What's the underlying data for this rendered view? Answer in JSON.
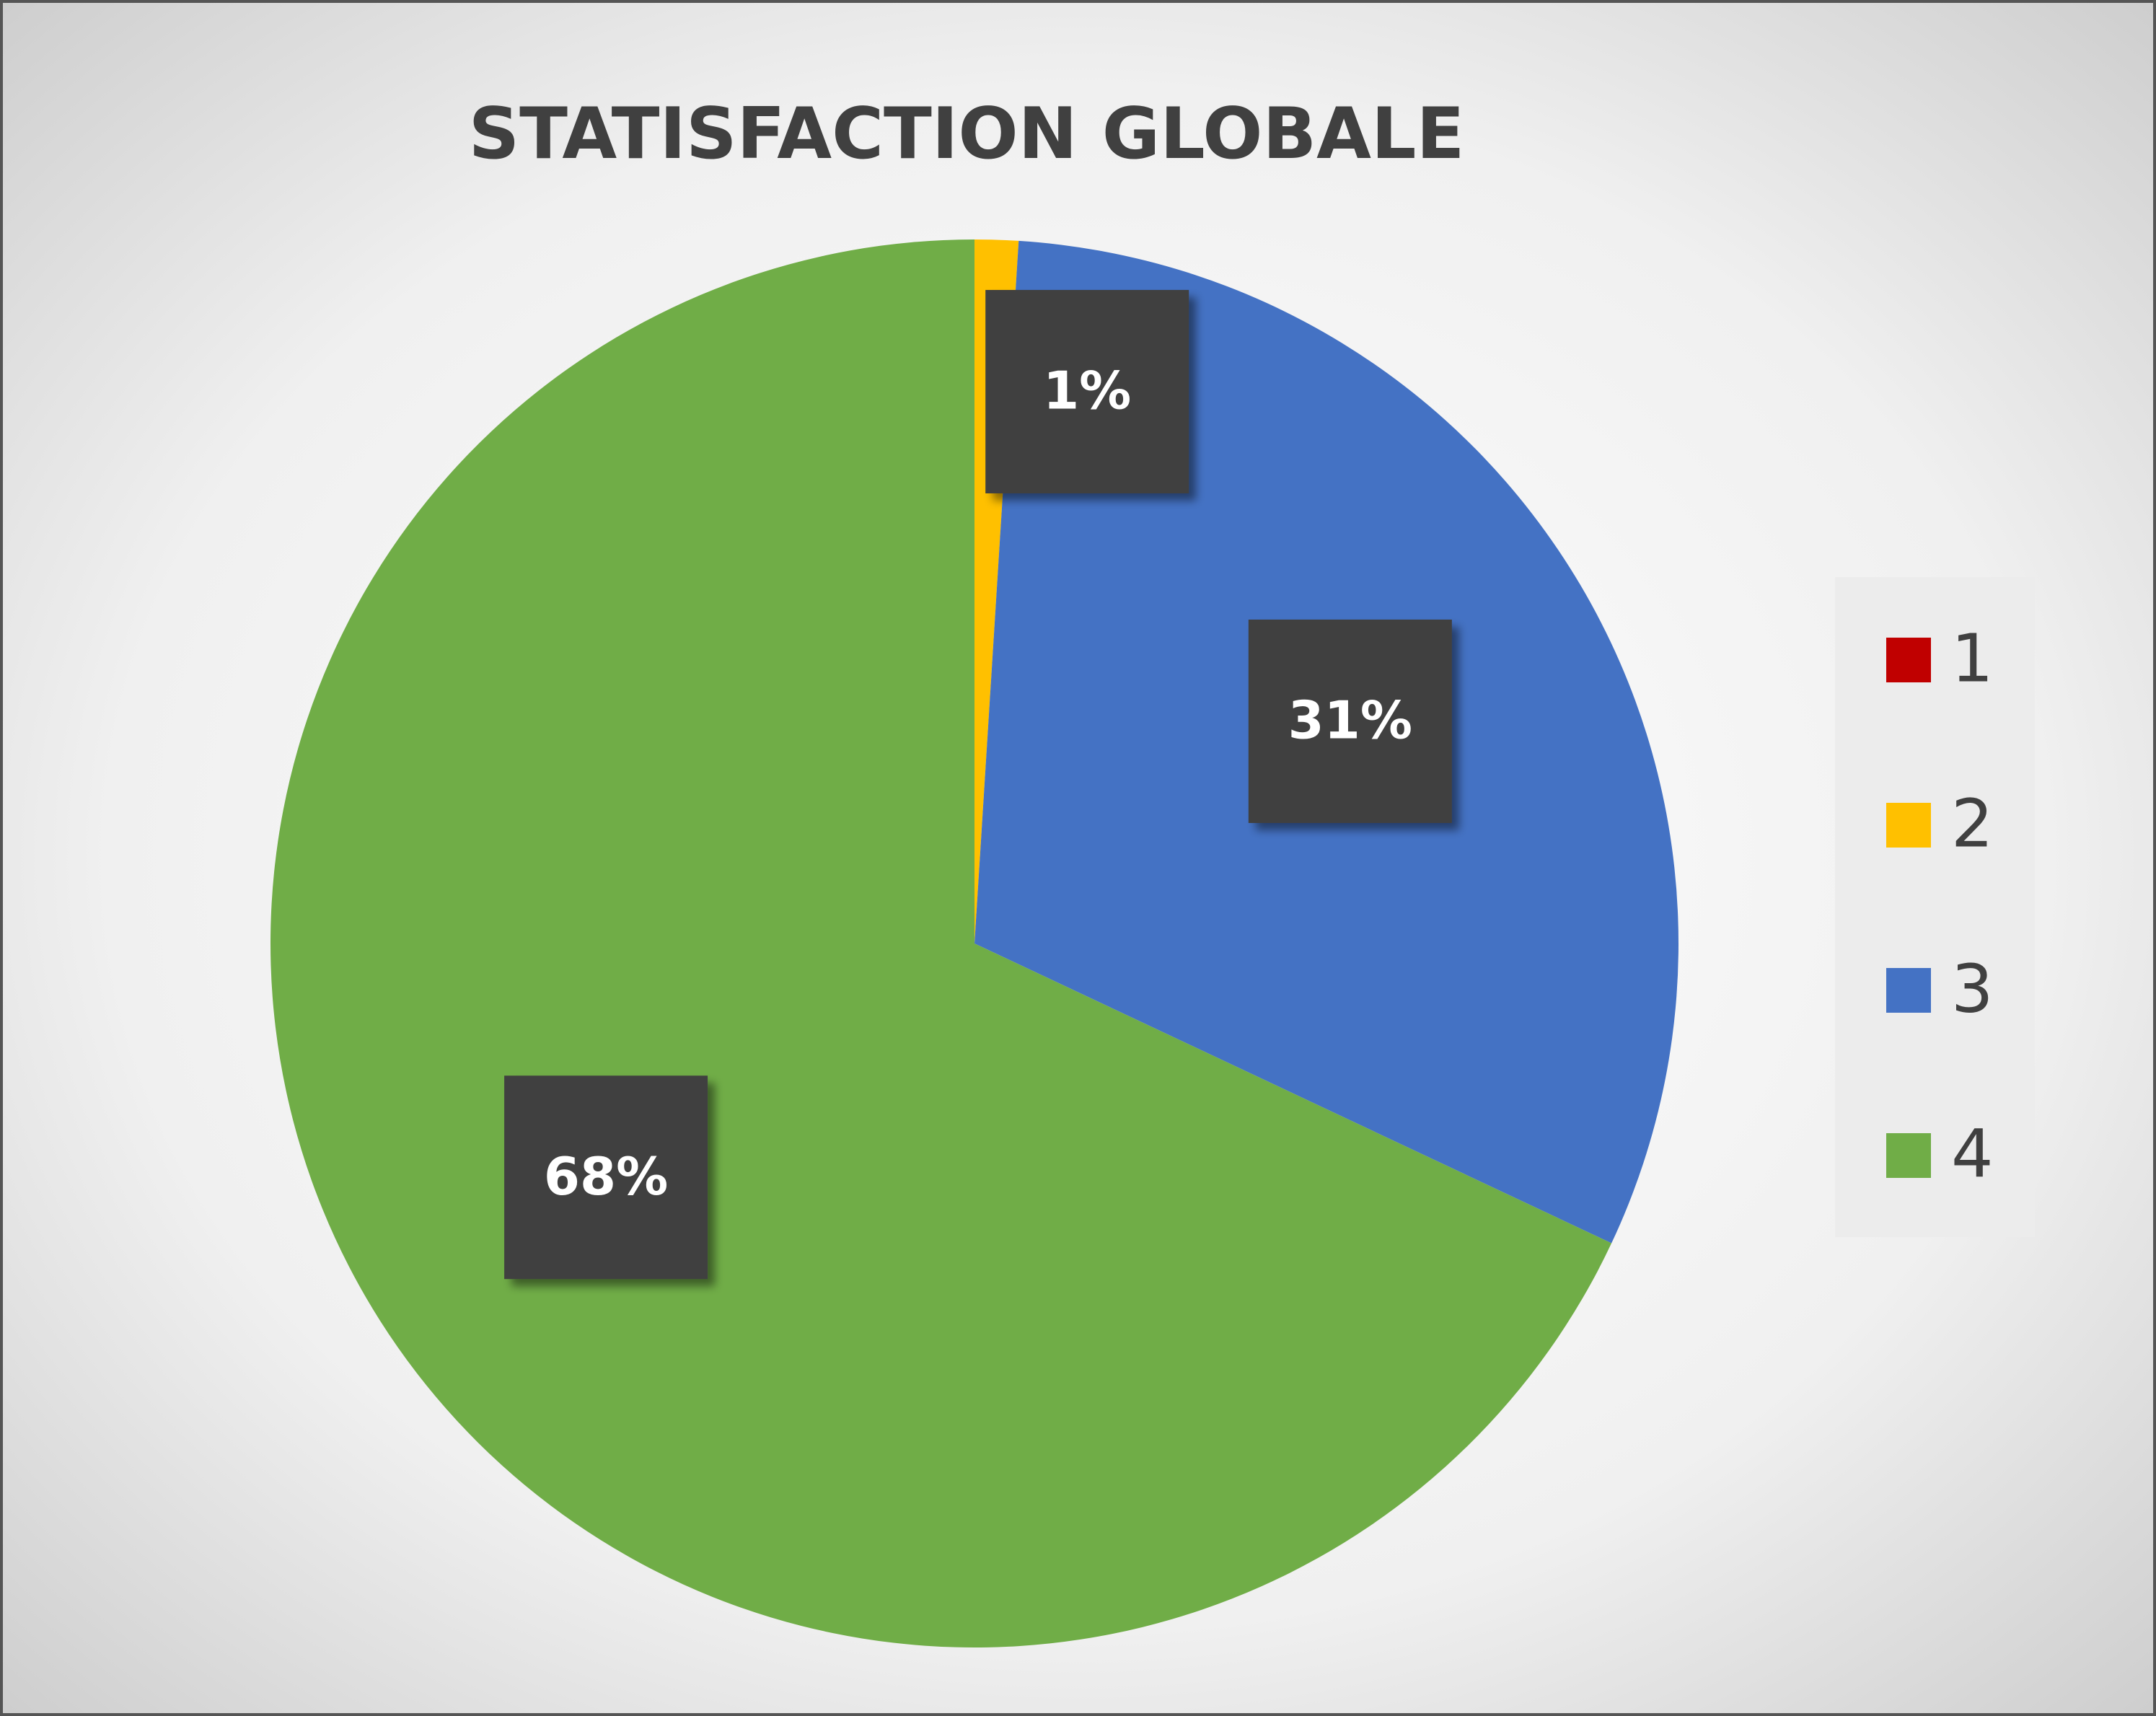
{
  "chart_data": {
    "type": "pie",
    "title": "STATISFACTION GLOBALE",
    "categories": [
      "1",
      "2",
      "3",
      "4"
    ],
    "values": [
      0,
      1,
      31,
      68
    ],
    "value_labels": [
      null,
      "1%",
      "31%",
      "68%"
    ],
    "colors": [
      "#c00000",
      "#ffc000",
      "#4472c4",
      "#70ad47"
    ],
    "legend": "right"
  }
}
